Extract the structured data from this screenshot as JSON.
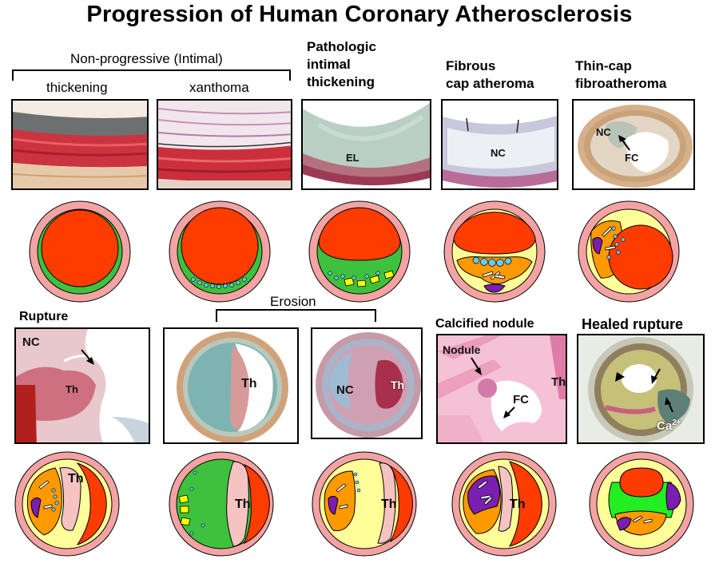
{
  "title": "Progression of Human Coronary Atherosclerosis",
  "groups": {
    "non_progressive": "Non-progressive (Intimal)",
    "erosion": "Erosion"
  },
  "stages": {
    "thickening": "thickening",
    "xanthoma": "xanthoma",
    "pathologic": [
      "Pathologic",
      "intimal",
      "thickening"
    ],
    "fibrous": [
      "Fibrous",
      "cap atheroma"
    ],
    "thincap": [
      "Thin-cap",
      "fibroatheroma"
    ],
    "rupture": "Rupture",
    "calcified": "Calcified nodule",
    "healed": "Healed rupture"
  },
  "panel_labels": {
    "el": "EL",
    "nc": "NC",
    "fc": "FC",
    "th": "Th",
    "nodule": "Nodule",
    "ca": "Ca",
    "ca_sup": "2+"
  },
  "colors": {
    "adventitia": "#f3a3a3",
    "lumen": "#ff3c00",
    "intima": "#ffff99",
    "proteoglycan": "#3ec13e",
    "necrotic": "#ff9900",
    "calcium": "#7a1fb0",
    "thrombus": "#f6c3c3",
    "lipid": "#ffff00",
    "cells": "#66ccee",
    "healed_green": "#22ee22"
  }
}
